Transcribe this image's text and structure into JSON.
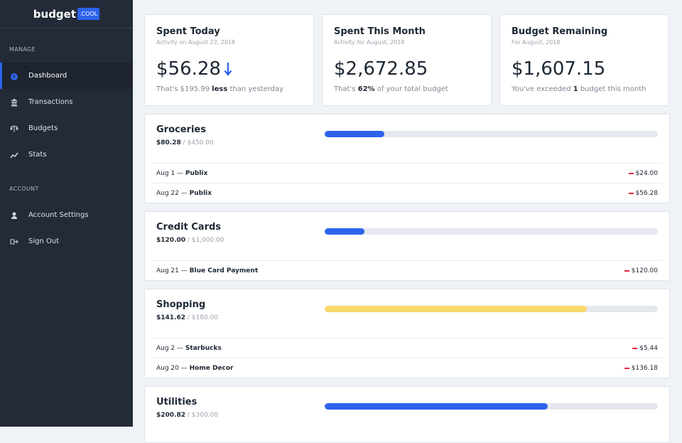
{
  "brand": {
    "name": "budget",
    "badge": ".COOL"
  },
  "nav": [
    {
      "heading": "MANAGE",
      "items": [
        "Dashboard",
        "Transactions",
        "Budgets",
        "Stats"
      ]
    },
    {
      "heading": "ACCOUNT",
      "items": [
        "Account Settings",
        "Sign Out"
      ]
    }
  ],
  "summary": [
    {
      "title": "Spent Today",
      "subtitle": "Activity on August 22, 2018",
      "amount": "$56.28",
      "note": [
        "That's $195.99 ",
        "less",
        " than yesterday"
      ]
    },
    {
      "title": "Spent This Month",
      "subtitle": "Activity for August, 2018",
      "amount": "$2,672.85",
      "note": [
        "That's ",
        "62%",
        " of your total budget"
      ]
    },
    {
      "title": "Budget Remaining",
      "subtitle": "For August, 2018",
      "amount": "$1,607.15",
      "note": [
        "You've exceeded ",
        "1",
        " budget this month"
      ]
    }
  ],
  "budgets": [
    {
      "name": "Groceries",
      "spent": "$80.28",
      "limit": "$450.00",
      "color": "#2d63ec",
      "transactions": [
        {
          "date": "Aug 1",
          "merchant": "Publix",
          "amount": "$24.00"
        },
        {
          "date": "Aug 22",
          "merchant": "Publix",
          "amount": "$56.28"
        }
      ]
    },
    {
      "name": "Credit Cards",
      "spent": "$120.00",
      "limit": "$1,000.00",
      "color": "#2d63ec",
      "transactions": [
        {
          "date": "Aug 21",
          "merchant": "Blue Card Payment",
          "amount": "$120.00"
        }
      ]
    },
    {
      "name": "Shopping",
      "spent": "$141.62",
      "limit": "$180.00",
      "color": "#f8d86a",
      "transactions": [
        {
          "date": "Aug 2",
          "merchant": "Starbucks",
          "amount": "$5.44"
        },
        {
          "date": "Aug 20",
          "merchant": "Home Decor",
          "amount": "$136.18"
        }
      ]
    },
    {
      "name": "Utilities",
      "spent": "$200.82",
      "limit": "$300.00",
      "color": "#2d63ec"
    }
  ]
}
